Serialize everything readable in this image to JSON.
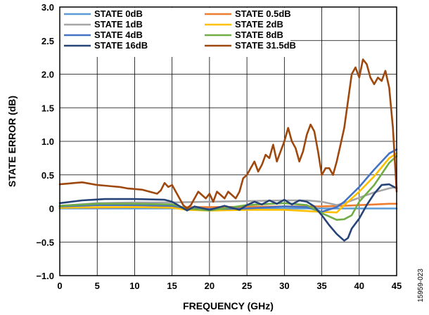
{
  "chart_data": {
    "type": "line",
    "xlabel": "FREQUENCY (GHz)",
    "ylabel": "STATE ERROR (dB)",
    "xlim": [
      0,
      45
    ],
    "ylim": [
      -1.0,
      3.0
    ],
    "x_ticks": [
      "0",
      "5",
      "10",
      "15",
      "20",
      "25",
      "30",
      "35",
      "40",
      "45"
    ],
    "y_ticks": [
      "−1.0",
      "−0.5",
      "0",
      "0.5",
      "1.0",
      "1.5",
      "2.0",
      "2.5",
      "3.0"
    ],
    "grid": true,
    "legend_position": "top-left",
    "figure_id": "15959-023",
    "series": [
      {
        "name": "STATE 0dB",
        "color": "#5b9bd5",
        "points": [
          [
            0,
            0
          ],
          [
            10,
            0
          ],
          [
            20,
            0
          ],
          [
            30,
            0
          ],
          [
            40,
            0
          ],
          [
            45,
            0
          ]
        ]
      },
      {
        "name": "STATE 0.5dB",
        "color": "#ed7d31",
        "points": [
          [
            0,
            0.01
          ],
          [
            10,
            0.02
          ],
          [
            20,
            0.02
          ],
          [
            30,
            0.03
          ],
          [
            35,
            0.03
          ],
          [
            38,
            0.04
          ],
          [
            40,
            0.05
          ],
          [
            42,
            0.06
          ],
          [
            44,
            0.07
          ],
          [
            45,
            0.07
          ]
        ]
      },
      {
        "name": "STATE 1dB",
        "color": "#a5a5a5",
        "points": [
          [
            0,
            0.04
          ],
          [
            5,
            0.08
          ],
          [
            10,
            0.09
          ],
          [
            15,
            0.09
          ],
          [
            20,
            0.1
          ],
          [
            25,
            0.11
          ],
          [
            30,
            0.12
          ],
          [
            33,
            0.12
          ],
          [
            35,
            0.1
          ],
          [
            37,
            0.05
          ],
          [
            38,
            0.08
          ],
          [
            40,
            0.16
          ],
          [
            42,
            0.24
          ],
          [
            44,
            0.3
          ],
          [
            45,
            0.32
          ]
        ]
      },
      {
        "name": "STATE 2dB",
        "color": "#ffc000",
        "points": [
          [
            0,
            0.01
          ],
          [
            5,
            0.02
          ],
          [
            10,
            0.02
          ],
          [
            15,
            0.01
          ],
          [
            17,
            -0.02
          ],
          [
            20,
            -0.03
          ],
          [
            25,
            -0.02
          ],
          [
            30,
            -0.02
          ],
          [
            35,
            -0.05
          ],
          [
            37,
            -0.06
          ],
          [
            38,
            0.05
          ],
          [
            40,
            0.25
          ],
          [
            42,
            0.48
          ],
          [
            44,
            0.75
          ],
          [
            45,
            0.82
          ]
        ]
      },
      {
        "name": "STATE 4dB",
        "color": "#4472c4",
        "points": [
          [
            0,
            0.03
          ],
          [
            5,
            0.05
          ],
          [
            10,
            0.05
          ],
          [
            15,
            0.04
          ],
          [
            17,
            0
          ],
          [
            20,
            -0.01
          ],
          [
            25,
            0
          ],
          [
            30,
            0.03
          ],
          [
            33,
            0.02
          ],
          [
            35,
            -0.05
          ],
          [
            37,
            0.02
          ],
          [
            38,
            0.1
          ],
          [
            40,
            0.32
          ],
          [
            42,
            0.58
          ],
          [
            44,
            0.82
          ],
          [
            45,
            0.88
          ]
        ]
      },
      {
        "name": "STATE 8dB",
        "color": "#70ad47",
        "points": [
          [
            0,
            0.04
          ],
          [
            5,
            0.07
          ],
          [
            10,
            0.07
          ],
          [
            15,
            0.06
          ],
          [
            17,
            0
          ],
          [
            20,
            -0.03
          ],
          [
            25,
            0.05
          ],
          [
            30,
            0.08
          ],
          [
            33,
            0.05
          ],
          [
            35,
            -0.07
          ],
          [
            37,
            -0.17
          ],
          [
            38,
            -0.16
          ],
          [
            39,
            -0.1
          ],
          [
            40,
            0.1
          ],
          [
            42,
            0.35
          ],
          [
            44,
            0.68
          ],
          [
            45,
            0.78
          ]
        ]
      },
      {
        "name": "STATE 16dB",
        "color": "#264478",
        "points": [
          [
            0,
            0.08
          ],
          [
            3,
            0.12
          ],
          [
            6,
            0.14
          ],
          [
            10,
            0.14
          ],
          [
            14,
            0.13
          ],
          [
            15,
            0.1
          ],
          [
            17,
            -0.03
          ],
          [
            18,
            0.03
          ],
          [
            20,
            -0.02
          ],
          [
            22,
            0.04
          ],
          [
            24,
            -0.02
          ],
          [
            25,
            0.05
          ],
          [
            26,
            0.1
          ],
          [
            27,
            0.06
          ],
          [
            28,
            0.12
          ],
          [
            29,
            0.07
          ],
          [
            30,
            0.13
          ],
          [
            31,
            0.06
          ],
          [
            32,
            0.12
          ],
          [
            33,
            0.1
          ],
          [
            34,
            0.03
          ],
          [
            35,
            -0.1
          ],
          [
            36,
            -0.25
          ],
          [
            37,
            -0.38
          ],
          [
            38,
            -0.48
          ],
          [
            38.5,
            -0.44
          ],
          [
            39,
            -0.3
          ],
          [
            40,
            -0.15
          ],
          [
            41,
            0.05
          ],
          [
            42,
            0.22
          ],
          [
            43,
            0.35
          ],
          [
            44,
            0.36
          ],
          [
            45,
            0.3
          ]
        ]
      },
      {
        "name": "STATE 31.5dB",
        "color": "#9e480e",
        "points": [
          [
            0,
            0.36
          ],
          [
            1,
            0.37
          ],
          [
            2,
            0.38
          ],
          [
            3,
            0.39
          ],
          [
            4,
            0.37
          ],
          [
            5,
            0.35
          ],
          [
            6,
            0.34
          ],
          [
            7,
            0.33
          ],
          [
            8,
            0.32
          ],
          [
            9,
            0.3
          ],
          [
            10,
            0.29
          ],
          [
            11,
            0.28
          ],
          [
            12,
            0.25
          ],
          [
            13,
            0.22
          ],
          [
            13.5,
            0.27
          ],
          [
            14,
            0.38
          ],
          [
            14.5,
            0.32
          ],
          [
            15,
            0.35
          ],
          [
            15.5,
            0.25
          ],
          [
            16,
            0.15
          ],
          [
            16.5,
            0.05
          ],
          [
            17,
            0
          ],
          [
            17.5,
            0.05
          ],
          [
            18,
            0.15
          ],
          [
            18.5,
            0.25
          ],
          [
            19,
            0.2
          ],
          [
            19.5,
            0.15
          ],
          [
            20,
            0.22
          ],
          [
            20.5,
            0.1
          ],
          [
            21,
            0.25
          ],
          [
            21.5,
            0.2
          ],
          [
            22,
            0.15
          ],
          [
            22.5,
            0.25
          ],
          [
            23,
            0.2
          ],
          [
            23.5,
            0.15
          ],
          [
            24,
            0.25
          ],
          [
            24.5,
            0.45
          ],
          [
            25,
            0.5
          ],
          [
            25.5,
            0.6
          ],
          [
            26,
            0.7
          ],
          [
            26.5,
            0.55
          ],
          [
            27,
            0.65
          ],
          [
            27.5,
            0.8
          ],
          [
            28,
            0.75
          ],
          [
            28.5,
            0.95
          ],
          [
            29,
            0.7
          ],
          [
            29.5,
            0.85
          ],
          [
            30,
            1.0
          ],
          [
            30.5,
            1.2
          ],
          [
            31,
            1.0
          ],
          [
            31.5,
            0.9
          ],
          [
            32,
            0.7
          ],
          [
            32.5,
            0.85
          ],
          [
            33,
            1.1
          ],
          [
            33.5,
            1.25
          ],
          [
            34,
            1.15
          ],
          [
            34.5,
            0.85
          ],
          [
            35,
            0.5
          ],
          [
            35.5,
            0.6
          ],
          [
            36,
            0.6
          ],
          [
            36.5,
            0.5
          ],
          [
            37,
            0.7
          ],
          [
            37.5,
            0.95
          ],
          [
            38,
            1.2
          ],
          [
            38.5,
            1.6
          ],
          [
            39,
            2.0
          ],
          [
            39.5,
            2.1
          ],
          [
            40,
            1.95
          ],
          [
            40.5,
            2.22
          ],
          [
            41,
            2.15
          ],
          [
            41.5,
            1.95
          ],
          [
            42,
            1.85
          ],
          [
            42.5,
            1.95
          ],
          [
            43,
            1.9
          ],
          [
            43.5,
            2.05
          ],
          [
            44,
            1.8
          ],
          [
            44.5,
            1.2
          ],
          [
            45,
            0.25
          ]
        ]
      }
    ]
  }
}
